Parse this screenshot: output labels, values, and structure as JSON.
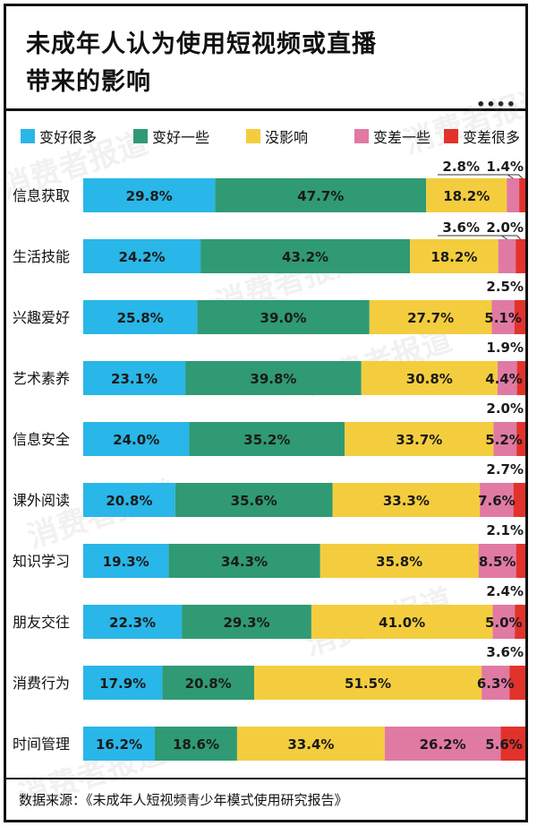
{
  "title_lines": [
    "未成年人认为使用短视频或直播",
    "带来的影响"
  ],
  "more_icon": "more-dots-icon",
  "more_glyph": "••••",
  "watermark_text": "消费者报道",
  "source_text": "数据来源：《未成年人短视频青少年模式使用研究报告》",
  "colors": {
    "much_better": "#29b6e8",
    "somewhat_better": "#2f9a73",
    "no_effect": "#f4cd3e",
    "somewhat_worse": "#e07aa3",
    "much_worse": "#e2322c"
  },
  "chart_data": {
    "type": "bar",
    "orientation": "horizontal",
    "stacked": true,
    "unit": "%",
    "title": "未成年人认为使用短视频或直播带来的影响",
    "categories": [
      "信息获取",
      "生活技能",
      "兴趣爱好",
      "艺术素养",
      "信息安全",
      "课外阅读",
      "知识学习",
      "朋友交往",
      "消费行为",
      "时间管理"
    ],
    "series": [
      {
        "name": "变好很多",
        "key": "much_better",
        "values": [
          29.8,
          24.2,
          25.8,
          23.1,
          24.0,
          20.8,
          19.3,
          22.3,
          17.9,
          16.2
        ]
      },
      {
        "name": "变好一些",
        "key": "somewhat_better",
        "values": [
          47.7,
          43.2,
          39.0,
          39.8,
          35.2,
          35.6,
          34.3,
          29.3,
          20.8,
          18.6
        ]
      },
      {
        "name": "没影响",
        "key": "no_effect",
        "values": [
          18.2,
          18.2,
          27.7,
          30.8,
          33.7,
          33.3,
          35.8,
          41.0,
          51.5,
          33.4
        ]
      },
      {
        "name": "变差一些",
        "key": "somewhat_worse",
        "values": [
          2.8,
          3.6,
          5.1,
          4.4,
          5.2,
          7.6,
          8.5,
          5.0,
          6.3,
          26.2
        ]
      },
      {
        "name": "变差很多",
        "key": "much_worse",
        "values": [
          1.4,
          2.0,
          2.5,
          1.9,
          2.0,
          2.7,
          2.1,
          2.4,
          3.6,
          5.6
        ]
      }
    ],
    "labels_inside": [
      [
        "29.8%",
        "47.7%",
        "18.2%",
        "",
        ""
      ],
      [
        "24.2%",
        "43.2%",
        "18.2%",
        "",
        ""
      ],
      [
        "25.8%",
        "39.0%",
        "27.7%",
        "5.1%",
        ""
      ],
      [
        "23.1%",
        "39.8%",
        "30.8%",
        "4.4%",
        ""
      ],
      [
        "24.0%",
        "35.2%",
        "33.7%",
        "5.2%",
        ""
      ],
      [
        "20.8%",
        "35.6%",
        "33.3%",
        "7.6%",
        ""
      ],
      [
        "19.3%",
        "34.3%",
        "35.8%",
        "8.5%",
        ""
      ],
      [
        "22.3%",
        "29.3%",
        "41.0%",
        "5.0%",
        ""
      ],
      [
        "17.9%",
        "20.8%",
        "51.5%",
        "6.3%",
        ""
      ],
      [
        "16.2%",
        "18.6%",
        "33.4%",
        "26.2%",
        "5.6%"
      ]
    ],
    "labels_above": [
      [
        "2.8%",
        "1.4%"
      ],
      [
        "3.6%",
        "2.0%"
      ],
      [
        "2.5%"
      ],
      [
        "1.9%"
      ],
      [
        "2.0%"
      ],
      [
        "2.7%"
      ],
      [
        "2.1%"
      ],
      [
        "2.4%"
      ],
      [
        "3.6%"
      ],
      []
    ],
    "xlim": [
      0,
      100
    ],
    "legend_position": "top"
  }
}
